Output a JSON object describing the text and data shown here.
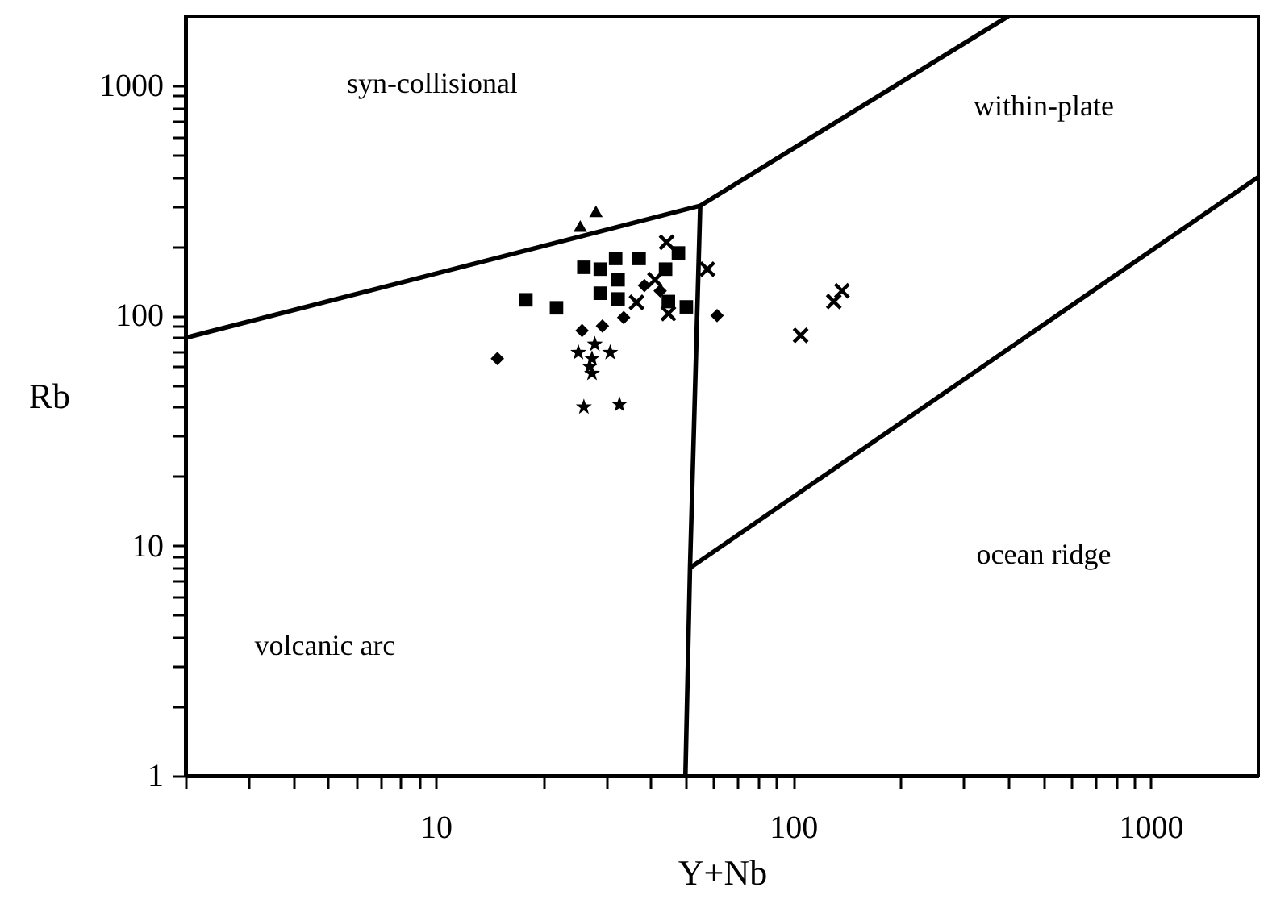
{
  "chart_data": {
    "type": "scatter",
    "xlabel": "Y+Nb",
    "ylabel": "Rb",
    "log": "xy",
    "grid": false,
    "xlim": [
      2,
      2000
    ],
    "ylim": [
      1,
      2000
    ],
    "xticks": [
      {
        "value": 2,
        "label": null
      },
      {
        "value": 3,
        "label": null
      },
      {
        "value": 4,
        "label": null
      },
      {
        "value": 5,
        "label": null
      },
      {
        "value": 6,
        "label": null
      },
      {
        "value": 7,
        "label": null
      },
      {
        "value": 8,
        "label": null
      },
      {
        "value": 9,
        "label": null
      },
      10,
      {
        "value": 20,
        "label": null
      },
      {
        "value": 30,
        "label": null
      },
      {
        "value": 40,
        "label": null
      },
      {
        "value": 50,
        "label": null
      },
      {
        "value": 60,
        "label": null
      },
      {
        "value": 70,
        "label": null
      },
      {
        "value": 80,
        "label": null
      },
      {
        "value": 90,
        "label": null
      },
      100,
      {
        "value": 200,
        "label": null
      },
      {
        "value": 300,
        "label": null
      },
      {
        "value": 400,
        "label": null
      },
      {
        "value": 500,
        "label": null
      },
      {
        "value": 600,
        "label": null
      },
      {
        "value": 700,
        "label": null
      },
      {
        "value": 800,
        "label": null
      },
      {
        "value": 900,
        "label": null
      },
      1000
    ],
    "yticks": [
      1,
      {
        "value": 2,
        "label": null
      },
      {
        "value": 3,
        "label": null
      },
      {
        "value": 4,
        "label": null
      },
      {
        "value": 5,
        "label": null
      },
      {
        "value": 6,
        "label": null
      },
      {
        "value": 7,
        "label": null
      },
      {
        "value": 8,
        "label": null
      },
      {
        "value": 9,
        "label": null
      },
      10,
      {
        "value": 20,
        "label": null
      },
      {
        "value": 30,
        "label": null
      },
      {
        "value": 40,
        "label": null
      },
      {
        "value": 50,
        "label": null
      },
      {
        "value": 60,
        "label": null
      },
      {
        "value": 70,
        "label": null
      },
      {
        "value": 80,
        "label": null
      },
      {
        "value": 90,
        "label": null
      },
      100,
      {
        "value": 200,
        "label": null
      },
      {
        "value": 300,
        "label": null
      },
      {
        "value": 400,
        "label": null
      },
      {
        "value": 500,
        "label": null
      },
      {
        "value": 600,
        "label": null
      },
      {
        "value": 700,
        "label": null
      },
      {
        "value": 800,
        "label": null
      },
      {
        "value": 900,
        "label": null
      },
      1000
    ],
    "annotations": [
      "syn-collisional",
      "within-plate",
      "ocean ridge",
      "volcanic arc"
    ],
    "series": [
      {
        "marker": "square",
        "color": "#000000",
        "x": [
          17.9,
          21.8,
          26.0,
          31.9,
          37.1,
          47.8,
          50.3,
          28.9,
          32.4,
          32.4,
          44.8,
          28.9,
          44
        ],
        "values": [
          117,
          108,
          162,
          177,
          177,
          187,
          109,
          159,
          143,
          118,
          115,
          125,
          159
        ]
      },
      {
        "marker": "triangle",
        "color": "#000000",
        "x": [
          25.4,
          28.1
        ],
        "values": [
          245,
          284
        ]
      },
      {
        "marker": "diamond",
        "color": "#000000",
        "x": [
          14.9,
          61.3,
          38.4,
          33.6,
          29.3,
          25.7,
          42.5
        ],
        "values": [
          65,
          100,
          135,
          98,
          90,
          86,
          128
        ]
      },
      {
        "marker": "star",
        "color": "#000000",
        "x": [
          26.0,
          32.7,
          25.1,
          27.4,
          30.8,
          27.4,
          27.9,
          27.0
        ],
        "values": [
          40,
          41,
          69,
          56,
          69,
          65,
          75,
          60
        ]
      },
      {
        "marker": "cross",
        "color": "#000000",
        "x": [
          105,
          130,
          137,
          44.3,
          57.6,
          36.5,
          44.8,
          41.1
        ],
        "values": [
          82,
          115,
          128,
          208,
          159,
          114,
          102,
          143
        ]
      },
      {
        "type": "line",
        "color": "#000000",
        "x": [
          2,
          55,
          400
        ],
        "values": [
          80,
          300,
          2000
        ]
      },
      {
        "type": "line",
        "color": "#000000",
        "x": [
          55,
          51.5,
          50
        ],
        "values": [
          300,
          8,
          1
        ]
      },
      {
        "type": "line",
        "color": "#000000",
        "x": [
          51.5,
          2000
        ],
        "values": [
          8,
          400
        ]
      }
    ]
  }
}
